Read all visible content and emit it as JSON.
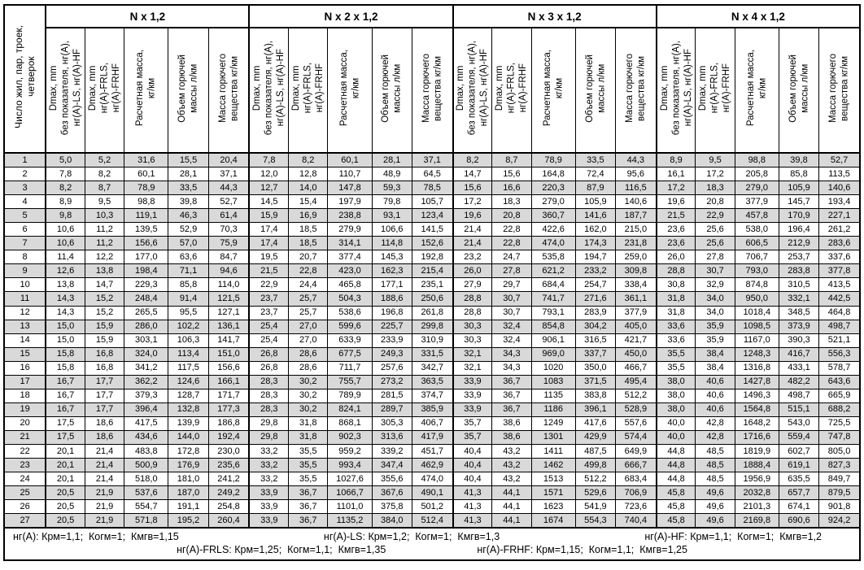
{
  "header": {
    "row_label": "Число жил, пар, троек,\nчетверок",
    "groups": [
      {
        "label": "N x 1,2"
      },
      {
        "label": "N x 2 x 1,2"
      },
      {
        "label": "N x 3 x 1,2"
      },
      {
        "label": "N x 4 x 1,2"
      }
    ],
    "columns": [
      "Dmax, mm\nбез показателя, нг(А),\nнг(А)-LS, нг(А)-HF",
      "Dmax, mm\nнг(А)-FRLS,\nнг(А)-FRHF",
      "Расчетная масса,\nкг/км",
      "Объем горючей\nмассы л/км",
      "Масса горючего\nвещества кг/км"
    ]
  },
  "rows": [
    {
      "n": "1",
      "values": [
        "5,0",
        "5,2",
        "31,6",
        "15,5",
        "20,4",
        "7,8",
        "8,2",
        "60,1",
        "28,1",
        "37,1",
        "8,2",
        "8,7",
        "78,9",
        "33,5",
        "44,3",
        "8,9",
        "9,5",
        "98,8",
        "39,8",
        "52,7"
      ]
    },
    {
      "n": "2",
      "values": [
        "7,8",
        "8,2",
        "60,1",
        "28,1",
        "37,1",
        "12,0",
        "12,8",
        "110,7",
        "48,9",
        "64,5",
        "14,7",
        "15,6",
        "164,8",
        "72,4",
        "95,6",
        "16,1",
        "17,2",
        "205,8",
        "85,8",
        "113,5"
      ]
    },
    {
      "n": "3",
      "values": [
        "8,2",
        "8,7",
        "78,9",
        "33,5",
        "44,3",
        "12,7",
        "14,0",
        "147,8",
        "59,3",
        "78,5",
        "15,6",
        "16,6",
        "220,3",
        "87,9",
        "116,5",
        "17,2",
        "18,3",
        "279,0",
        "105,9",
        "140,6"
      ]
    },
    {
      "n": "4",
      "values": [
        "8,9",
        "9,5",
        "98,8",
        "39,8",
        "52,7",
        "14,5",
        "15,4",
        "197,9",
        "79,8",
        "105,7",
        "17,2",
        "18,3",
        "279,0",
        "105,9",
        "140,6",
        "19,6",
        "20,8",
        "377,9",
        "145,7",
        "193,4"
      ]
    },
    {
      "n": "5",
      "values": [
        "9,8",
        "10,3",
        "119,1",
        "46,3",
        "61,4",
        "15,9",
        "16,9",
        "238,8",
        "93,1",
        "123,4",
        "19,6",
        "20,8",
        "360,7",
        "141,6",
        "187,7",
        "21,5",
        "22,9",
        "457,8",
        "170,9",
        "227,1"
      ]
    },
    {
      "n": "6",
      "values": [
        "10,6",
        "11,2",
        "139,5",
        "52,9",
        "70,3",
        "17,4",
        "18,5",
        "279,9",
        "106,6",
        "141,5",
        "21,4",
        "22,8",
        "422,6",
        "162,0",
        "215,0",
        "23,6",
        "25,6",
        "538,0",
        "196,4",
        "261,2"
      ]
    },
    {
      "n": "7",
      "values": [
        "10,6",
        "11,2",
        "156,6",
        "57,0",
        "75,9",
        "17,4",
        "18,5",
        "314,1",
        "114,8",
        "152,6",
        "21,4",
        "22,8",
        "474,0",
        "174,3",
        "231,8",
        "23,6",
        "25,6",
        "606,5",
        "212,9",
        "283,6"
      ]
    },
    {
      "n": "8",
      "values": [
        "11,4",
        "12,2",
        "177,0",
        "63,6",
        "84,7",
        "19,5",
        "20,7",
        "377,4",
        "145,3",
        "192,8",
        "23,2",
        "24,7",
        "535,8",
        "194,7",
        "259,0",
        "26,0",
        "27,8",
        "706,7",
        "253,7",
        "337,6"
      ]
    },
    {
      "n": "9",
      "values": [
        "12,6",
        "13,8",
        "198,4",
        "71,1",
        "94,6",
        "21,5",
        "22,8",
        "423,0",
        "162,3",
        "215,4",
        "26,0",
        "27,8",
        "621,2",
        "233,2",
        "309,8",
        "28,8",
        "30,7",
        "793,0",
        "283,8",
        "377,8"
      ]
    },
    {
      "n": "10",
      "values": [
        "13,8",
        "14,7",
        "229,3",
        "85,8",
        "114,0",
        "22,9",
        "24,4",
        "465,8",
        "177,1",
        "235,1",
        "27,9",
        "29,7",
        "684,4",
        "254,7",
        "338,4",
        "30,8",
        "32,9",
        "874,8",
        "310,5",
        "413,5"
      ]
    },
    {
      "n": "11",
      "values": [
        "14,3",
        "15,2",
        "248,4",
        "91,4",
        "121,5",
        "23,7",
        "25,7",
        "504,3",
        "188,6",
        "250,6",
        "28,8",
        "30,7",
        "741,7",
        "271,6",
        "361,1",
        "31,8",
        "34,0",
        "950,0",
        "332,1",
        "442,5"
      ]
    },
    {
      "n": "12",
      "values": [
        "14,3",
        "15,2",
        "265,5",
        "95,5",
        "127,1",
        "23,7",
        "25,7",
        "538,6",
        "196,8",
        "261,8",
        "28,8",
        "30,7",
        "793,1",
        "283,9",
        "377,9",
        "31,8",
        "34,0",
        "1018,4",
        "348,5",
        "464,8"
      ]
    },
    {
      "n": "13",
      "values": [
        "15,0",
        "15,9",
        "286,0",
        "102,2",
        "136,1",
        "25,4",
        "27,0",
        "599,6",
        "225,7",
        "299,8",
        "30,3",
        "32,4",
        "854,8",
        "304,2",
        "405,0",
        "33,6",
        "35,9",
        "1098,5",
        "373,9",
        "498,7"
      ]
    },
    {
      "n": "14",
      "values": [
        "15,0",
        "15,9",
        "303,1",
        "106,3",
        "141,7",
        "25,4",
        "27,0",
        "633,9",
        "233,9",
        "310,9",
        "30,3",
        "32,4",
        "906,1",
        "316,5",
        "421,7",
        "33,6",
        "35,9",
        "1167,0",
        "390,3",
        "521,1"
      ]
    },
    {
      "n": "15",
      "values": [
        "15,8",
        "16,8",
        "324,0",
        "113,4",
        "151,0",
        "26,8",
        "28,6",
        "677,5",
        "249,3",
        "331,5",
        "32,1",
        "34,3",
        "969,0",
        "337,7",
        "450,0",
        "35,5",
        "38,4",
        "1248,3",
        "416,7",
        "556,3"
      ]
    },
    {
      "n": "16",
      "values": [
        "15,8",
        "16,8",
        "341,2",
        "117,5",
        "156,6",
        "26,8",
        "28,6",
        "711,7",
        "257,6",
        "342,7",
        "32,1",
        "34,3",
        "1020",
        "350,0",
        "466,7",
        "35,5",
        "38,4",
        "1316,8",
        "433,1",
        "578,7"
      ]
    },
    {
      "n": "17",
      "values": [
        "16,7",
        "17,7",
        "362,2",
        "124,6",
        "166,1",
        "28,3",
        "30,2",
        "755,7",
        "273,2",
        "363,5",
        "33,9",
        "36,7",
        "1083",
        "371,5",
        "495,4",
        "38,0",
        "40,6",
        "1427,8",
        "482,2",
        "643,6"
      ]
    },
    {
      "n": "18",
      "values": [
        "16,7",
        "17,7",
        "379,3",
        "128,7",
        "171,7",
        "28,3",
        "30,2",
        "789,9",
        "281,5",
        "374,7",
        "33,9",
        "36,7",
        "1135",
        "383,8",
        "512,2",
        "38,0",
        "40,6",
        "1496,3",
        "498,7",
        "665,9"
      ]
    },
    {
      "n": "19",
      "values": [
        "16,7",
        "17,7",
        "396,4",
        "132,8",
        "177,3",
        "28,3",
        "30,2",
        "824,1",
        "289,7",
        "385,9",
        "33,9",
        "36,7",
        "1186",
        "396,1",
        "528,9",
        "38,0",
        "40,6",
        "1564,8",
        "515,1",
        "688,2"
      ]
    },
    {
      "n": "20",
      "values": [
        "17,5",
        "18,6",
        "417,5",
        "139,9",
        "186,8",
        "29,8",
        "31,8",
        "868,1",
        "305,3",
        "406,7",
        "35,7",
        "38,6",
        "1249",
        "417,6",
        "557,6",
        "40,0",
        "42,8",
        "1648,2",
        "543,0",
        "725,5"
      ]
    },
    {
      "n": "21",
      "values": [
        "17,5",
        "18,6",
        "434,6",
        "144,0",
        "192,4",
        "29,8",
        "31,8",
        "902,3",
        "313,6",
        "417,9",
        "35,7",
        "38,6",
        "1301",
        "429,9",
        "574,4",
        "40,0",
        "42,8",
        "1716,6",
        "559,4",
        "747,8"
      ]
    },
    {
      "n": "22",
      "values": [
        "20,1",
        "21,4",
        "483,8",
        "172,8",
        "230,0",
        "33,2",
        "35,5",
        "959,2",
        "339,2",
        "451,7",
        "40,4",
        "43,2",
        "1411",
        "487,5",
        "649,9",
        "44,8",
        "48,5",
        "1819,9",
        "602,7",
        "805,0"
      ]
    },
    {
      "n": "23",
      "values": [
        "20,1",
        "21,4",
        "500,9",
        "176,9",
        "235,6",
        "33,2",
        "35,5",
        "993,4",
        "347,4",
        "462,9",
        "40,4",
        "43,2",
        "1462",
        "499,8",
        "666,7",
        "44,8",
        "48,5",
        "1888,4",
        "619,1",
        "827,3"
      ]
    },
    {
      "n": "24",
      "values": [
        "20,1",
        "21,4",
        "518,0",
        "181,0",
        "241,2",
        "33,2",
        "35,5",
        "1027,6",
        "355,6",
        "474,0",
        "40,4",
        "43,2",
        "1513",
        "512,2",
        "683,4",
        "44,8",
        "48,5",
        "1956,9",
        "635,5",
        "849,7"
      ]
    },
    {
      "n": "25",
      "values": [
        "20,5",
        "21,9",
        "537,6",
        "187,0",
        "249,2",
        "33,9",
        "36,7",
        "1066,7",
        "367,6",
        "490,1",
        "41,3",
        "44,1",
        "1571",
        "529,6",
        "706,9",
        "45,8",
        "49,6",
        "2032,8",
        "657,7",
        "879,5"
      ]
    },
    {
      "n": "26",
      "values": [
        "20,5",
        "21,9",
        "554,7",
        "191,1",
        "254,8",
        "33,9",
        "36,7",
        "1101,0",
        "375,8",
        "501,2",
        "41,3",
        "44,1",
        "1623",
        "541,9",
        "723,6",
        "45,8",
        "49,6",
        "2101,3",
        "674,1",
        "901,8"
      ]
    },
    {
      "n": "27",
      "values": [
        "20,5",
        "21,9",
        "571,8",
        "195,2",
        "260,4",
        "33,9",
        "36,7",
        "1135,2",
        "384,0",
        "512,4",
        "41,3",
        "44,1",
        "1674",
        "554,3",
        "740,4",
        "45,8",
        "49,6",
        "2169,8",
        "690,6",
        "924,2"
      ]
    }
  ],
  "footer": {
    "line1": [
      "нг(А): Крм=1,1;  Когм=1;  Кмгв=1,15",
      "нг(А)-LS: Крм=1,2;  Когм=1;  Кмгв=1,3",
      "нг(А)-HF: Крм=1,1;  Когм=1;  Кмгв=1,2"
    ],
    "line2": [
      "нг(А)-FRLS: Крм=1,25;  Когм=1,1;  Кмгв=1,35",
      "нг(А)-FRHF: Крм=1,15;  Когм=1,1;  Кмгв=1,25"
    ]
  },
  "colors": {
    "row_shade": "#d9d9d9",
    "border": "#000000",
    "background": "#ffffff"
  },
  "layout_meta": {
    "num_col_width": 51,
    "group_col_widths": [
      48,
      48,
      54,
      49,
      50
    ]
  }
}
